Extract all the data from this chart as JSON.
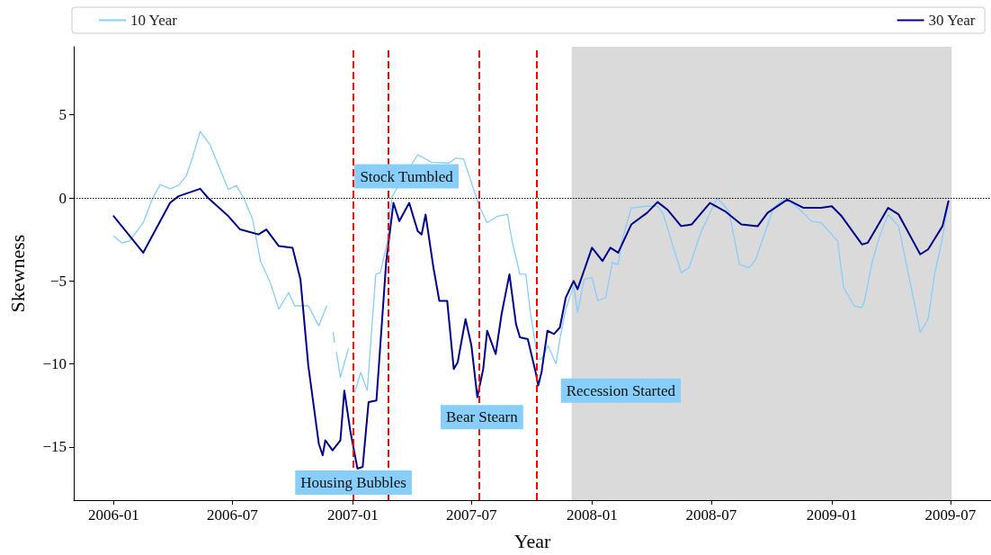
{
  "chart_data": {
    "type": "line",
    "xlabel": "Year",
    "ylabel": "Skewness",
    "xlim": [
      "2005-11-01",
      "2009-09-01"
    ],
    "xticks": [
      "2006-01",
      "2006-07",
      "2007-01",
      "2007-07",
      "2008-01",
      "2008-07",
      "2009-01",
      "2009-07"
    ],
    "ylim": [
      -18.2,
      9.1
    ],
    "yticks": [
      -15,
      -10,
      -5,
      0,
      5
    ],
    "grid": false,
    "legend": "top",
    "marker": "none",
    "line_style": "solid",
    "series": [
      {
        "name": "10 Year",
        "color": "#87cefa",
        "x": [
          "2006-01-01",
          "2006-01-13",
          "2006-01-25",
          "2006-02-15",
          "2006-03-01",
          "2006-03-13",
          "2006-03-28",
          "2006-04-10",
          "2006-04-22",
          "2006-05-01",
          "2006-05-13",
          "2006-05-28",
          "2006-06-25",
          "2006-07-07",
          "2006-07-19",
          "2006-08-01",
          "2006-08-13",
          "2006-08-28",
          "2006-09-10",
          "2006-09-25",
          "2006-10-04",
          "2006-10-25",
          "2006-11-10",
          "2006-11-22",
          "2006-11-27",
          "2006-12-02",
          "2006-12-04",
          "2006-12-05",
          "2006-12-07",
          "2006-12-13",
          "2006-12-25",
          "2006-12-30",
          "2007-01-04",
          "2007-01-13",
          "2007-01-23",
          "2007-02-05",
          "2007-02-12",
          "2007-02-24",
          "2007-02-27",
          "2007-03-02",
          "2007-04-10",
          "2007-05-01",
          "2007-05-28",
          "2007-06-07",
          "2007-06-19",
          "2007-07-13",
          "2007-07-25",
          "2007-08-10",
          "2007-08-25",
          "2007-09-01",
          "2007-09-13",
          "2007-09-22",
          "2007-09-29",
          "2007-10-10",
          "2007-10-16",
          "2007-10-26",
          "2007-11-07",
          "2007-11-13",
          "2007-11-22",
          "2007-12-04",
          "2007-12-10",
          "2007-12-20",
          "2008-01-01",
          "2008-01-10",
          "2008-01-22",
          "2008-02-01",
          "2008-02-10",
          "2008-02-15",
          "2008-03-01",
          "2008-03-25",
          "2008-04-10",
          "2008-04-19",
          "2008-05-16",
          "2008-05-28",
          "2008-06-16",
          "2008-07-10",
          "2008-07-28",
          "2008-08-13",
          "2008-08-28",
          "2008-09-07",
          "2008-10-04",
          "2008-10-22",
          "2008-11-10",
          "2008-12-01",
          "2008-12-16",
          "2009-01-10",
          "2009-01-19",
          "2009-02-04",
          "2009-02-16",
          "2009-02-20",
          "2009-03-04",
          "2009-03-16",
          "2009-03-28",
          "2009-04-13",
          "2009-04-28",
          "2009-05-07",
          "2009-05-16",
          "2009-05-28",
          "2009-06-07",
          "2009-06-19",
          "2009-06-28"
        ],
        "values": [
          -2.3,
          -2.7,
          -2.6,
          -1.5,
          -0.05,
          0.8,
          0.55,
          0.75,
          1.35,
          2.4,
          4.0,
          3.2,
          0.5,
          0.75,
          -0.05,
          -1.3,
          -3.8,
          -5.1,
          -6.7,
          -5.7,
          -6.5,
          -6.5,
          -7.7,
          -6.5,
          null,
          -8.1,
          -8.7,
          null,
          -9.3,
          -10.8,
          -9.1,
          null,
          -11.7,
          -10.5,
          -11.6,
          -4.6,
          -4.5,
          -2.4,
          -0.8,
          0.1,
          2.6,
          2.15,
          2.1,
          2.4,
          2.35,
          -0.5,
          -1.5,
          -1.1,
          -1.0,
          -2.6,
          -4.6,
          -4.6,
          -6.9,
          -9.7,
          -9.7,
          -8.9,
          -10.0,
          -8.5,
          -6.7,
          -5.3,
          -6.9,
          -4.9,
          -4.8,
          -6.2,
          -6.0,
          -3.9,
          -4.0,
          -2.7,
          -0.6,
          -0.5,
          -0.5,
          -1.0,
          -4.5,
          -4.2,
          -2.0,
          0.0,
          -0.8,
          -4.0,
          -4.2,
          -3.7,
          -0.6,
          0.0,
          -0.6,
          -1.4,
          -1.5,
          -2.6,
          -5.4,
          -6.5,
          -6.6,
          -6.2,
          -3.8,
          -2.2,
          -1.0,
          -1.7,
          -4.6,
          -6.3,
          -8.1,
          -7.3,
          -4.6,
          -2.4,
          -0.3
        ]
      },
      {
        "name": "30 Year",
        "color": "#00008b",
        "x": [
          "2006-01-01",
          "2006-02-15",
          "2006-03-28",
          "2006-04-10",
          "2006-05-13",
          "2006-05-25",
          "2006-06-25",
          "2006-07-13",
          "2006-08-10",
          "2006-08-22",
          "2006-09-10",
          "2006-10-01",
          "2006-10-13",
          "2006-10-25",
          "2006-11-10",
          "2006-11-16",
          "2006-11-20",
          "2006-12-01",
          "2006-12-13",
          "2006-12-19",
          "2006-12-28",
          "2007-01-08",
          "2007-01-16",
          "2007-01-25",
          "2007-02-06",
          "2007-02-21",
          "2007-03-04",
          "2007-03-13",
          "2007-03-28",
          "2007-04-10",
          "2007-04-16",
          "2007-04-22",
          "2007-05-04",
          "2007-05-13",
          "2007-05-25",
          "2007-06-04",
          "2007-06-10",
          "2007-06-22",
          "2007-07-01",
          "2007-07-10",
          "2007-07-19",
          "2007-07-25",
          "2007-08-07",
          "2007-08-16",
          "2007-08-28",
          "2007-09-07",
          "2007-09-13",
          "2007-09-25",
          "2007-10-07",
          "2007-10-11",
          "2007-10-16",
          "2007-10-25",
          "2007-11-04",
          "2007-11-13",
          "2007-11-22",
          "2007-12-04",
          "2007-12-10",
          "2008-01-01",
          "2008-01-17",
          "2008-01-29",
          "2008-02-10",
          "2008-03-01",
          "2008-03-25",
          "2008-04-10",
          "2008-04-25",
          "2008-05-16",
          "2008-06-01",
          "2008-06-29",
          "2008-07-22",
          "2008-08-16",
          "2008-09-10",
          "2008-09-25",
          "2008-10-25",
          "2008-11-19",
          "2008-12-16",
          "2009-01-01",
          "2009-01-16",
          "2009-02-16",
          "2009-02-25",
          "2009-03-28",
          "2009-04-13",
          "2009-05-16",
          "2009-05-28",
          "2009-06-19",
          "2009-06-28"
        ],
        "values": [
          -1.1,
          -3.3,
          -0.3,
          0.1,
          0.55,
          0,
          -1.1,
          -1.9,
          -2.2,
          -1.9,
          -2.9,
          -3.0,
          -4.9,
          -10.1,
          -14.8,
          -15.5,
          -14.6,
          -15.2,
          -14.6,
          -11.6,
          -14.0,
          -16.3,
          -16.2,
          -12.3,
          -12.2,
          -3.8,
          -0.3,
          -1.4,
          -0.3,
          -2.0,
          -2.2,
          -1.0,
          -4.2,
          -6.2,
          -6.2,
          -10.3,
          -9.9,
          -7.3,
          -8.9,
          -12.0,
          -10.3,
          -8.0,
          -9.4,
          -7.0,
          -4.6,
          -7.6,
          -8.4,
          -8.5,
          -10.5,
          -11.3,
          -10.5,
          -8.0,
          -8.2,
          -7.8,
          -6.0,
          -5.0,
          -5.5,
          -3.0,
          -3.8,
          -3.0,
          -3.3,
          -1.6,
          -0.9,
          -0.25,
          -0.7,
          -1.7,
          -1.6,
          -0.3,
          -0.8,
          -1.6,
          -1.7,
          -0.9,
          -0.1,
          -0.6,
          -0.6,
          -0.5,
          -1.1,
          -2.8,
          -2.7,
          -0.6,
          -1.0,
          -3.4,
          -3.1,
          -1.7,
          -0.2
        ]
      }
    ],
    "ref_lines": [
      {
        "axis": "y",
        "value": 0,
        "color": "#000000",
        "line_style": "dotted"
      },
      {
        "axis": "x",
        "value": "2007-01-01",
        "color": "#ff0000",
        "line_style": "dashed"
      },
      {
        "axis": "x",
        "value": "2007-02-24",
        "color": "#ff0000",
        "line_style": "dashed"
      },
      {
        "axis": "x",
        "value": "2007-07-13",
        "color": "#ff0000",
        "line_style": "dashed"
      },
      {
        "axis": "x",
        "value": "2007-10-08",
        "color": "#ff0000",
        "line_style": "dashed"
      }
    ],
    "bands": [
      {
        "axis": "x",
        "from": "2007-12-01",
        "to": "2009-07-03",
        "color": "#dadada"
      }
    ],
    "annotations": [
      {
        "text": "Housing Bubbles",
        "x": "2007-01-02",
        "y": -17.15
      },
      {
        "text": "Stock Tumbled",
        "x": "2007-03-24",
        "y": 1.3
      },
      {
        "text": "Bear Stearn",
        "x": "2007-07-17",
        "y": -13.2
      },
      {
        "text": "Recession Started",
        "x": "2007-12-01",
        "y": -11.6
      }
    ]
  }
}
